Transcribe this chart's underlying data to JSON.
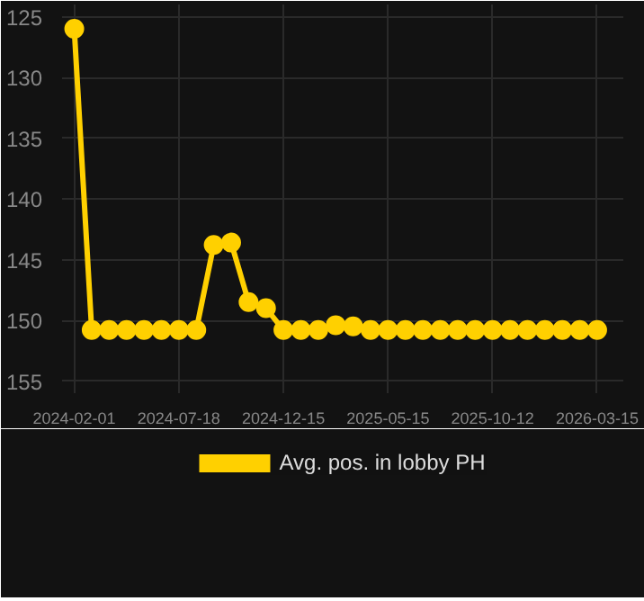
{
  "chart_data": {
    "type": "line",
    "categories": [
      "2024-02-01",
      null,
      null,
      null,
      null,
      null,
      "2024-07-18",
      null,
      null,
      null,
      null,
      null,
      "2024-12-15",
      null,
      null,
      null,
      null,
      null,
      "2025-05-15",
      null,
      null,
      null,
      null,
      null,
      "2025-10-12",
      null,
      null,
      null,
      null,
      null,
      "2026-03-15"
    ],
    "series": [
      {
        "name": "Avg. pos. in lobby PH",
        "color": "#ffd000",
        "values": [
          126,
          150.8,
          150.8,
          150.8,
          150.8,
          150.8,
          150.8,
          150.8,
          143.8,
          143.6,
          148.5,
          149.0,
          150.8,
          150.8,
          150.8,
          150.4,
          150.5,
          150.8,
          150.8,
          150.8,
          150.8,
          150.8,
          150.8,
          150.8,
          150.8,
          150.8,
          150.8,
          150.8,
          150.8,
          150.8,
          150.8
        ]
      }
    ],
    "ylim": [
      156,
      124
    ],
    "yticks": [
      125,
      130,
      135,
      140,
      145,
      150,
      155
    ],
    "grid": true,
    "legend": "bottom",
    "marker": "circle",
    "line_style": "solid"
  }
}
